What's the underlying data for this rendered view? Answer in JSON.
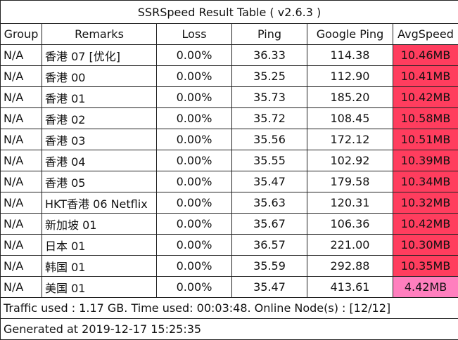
{
  "title": "SSRSpeed Result Table ( v2.6.3 )",
  "headers": [
    "Group",
    "Remarks",
    "Loss",
    "Ping",
    "Google Ping",
    "AvgSpeed"
  ],
  "rows": [
    {
      "group": "N/A",
      "remarks": "香港 07 [优化]",
      "loss": "0.00%",
      "ping": "36.33",
      "gping": "114.38",
      "speed": "10.46MB",
      "color": "#ff3d5e"
    },
    {
      "group": "N/A",
      "remarks": "香港 00",
      "loss": "0.00%",
      "ping": "35.25",
      "gping": "112.90",
      "speed": "10.41MB",
      "color": "#ff3d5e"
    },
    {
      "group": "N/A",
      "remarks": "香港 01",
      "loss": "0.00%",
      "ping": "35.73",
      "gping": "185.20",
      "speed": "10.42MB",
      "color": "#ff3d5e"
    },
    {
      "group": "N/A",
      "remarks": "香港 02",
      "loss": "0.00%",
      "ping": "35.72",
      "gping": "108.45",
      "speed": "10.58MB",
      "color": "#ff3d5e"
    },
    {
      "group": "N/A",
      "remarks": "香港 03",
      "loss": "0.00%",
      "ping": "35.56",
      "gping": "172.12",
      "speed": "10.51MB",
      "color": "#ff3d5e"
    },
    {
      "group": "N/A",
      "remarks": "香港 04",
      "loss": "0.00%",
      "ping": "35.55",
      "gping": "102.92",
      "speed": "10.39MB",
      "color": "#ff3d5e"
    },
    {
      "group": "N/A",
      "remarks": "香港 05",
      "loss": "0.00%",
      "ping": "35.47",
      "gping": "179.58",
      "speed": "10.34MB",
      "color": "#ff3d5e"
    },
    {
      "group": "N/A",
      "remarks": "HKT香港 06 Netflix",
      "loss": "0.00%",
      "ping": "35.63",
      "gping": "120.31",
      "speed": "10.32MB",
      "color": "#ff3d5e"
    },
    {
      "group": "N/A",
      "remarks": "新加坡 01",
      "loss": "0.00%",
      "ping": "35.67",
      "gping": "106.36",
      "speed": "10.42MB",
      "color": "#ff3d5e"
    },
    {
      "group": "N/A",
      "remarks": "日本 01",
      "loss": "0.00%",
      "ping": "36.57",
      "gping": "221.00",
      "speed": "10.30MB",
      "color": "#ff3d5e"
    },
    {
      "group": "N/A",
      "remarks": "韩国 01",
      "loss": "0.00%",
      "ping": "35.59",
      "gping": "292.88",
      "speed": "10.35MB",
      "color": "#ff3d5e"
    },
    {
      "group": "N/A",
      "remarks": "美国 01",
      "loss": "0.00%",
      "ping": "35.47",
      "gping": "413.61",
      "speed": "4.42MB",
      "color": "#ff7fbe"
    }
  ],
  "footer": {
    "traffic": "Traffic used : 1.17 GB. Time used: 00:03:48. Online Node(s) : [12/12]",
    "generated": "Generated at 2019-12-17 15:25:35"
  }
}
